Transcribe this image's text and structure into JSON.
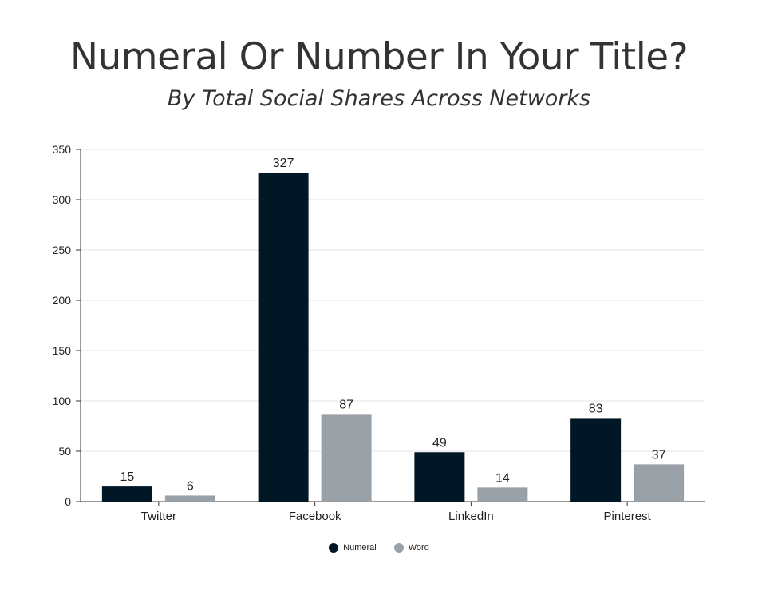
{
  "chart_data": {
    "type": "bar",
    "title": "Numeral Or Number In Your Title?",
    "subtitle": "By Total Social Shares Across Networks",
    "categories": [
      "Twitter",
      "Facebook",
      "LinkedIn",
      "Pinterest"
    ],
    "series": [
      {
        "name": "Numeral",
        "values": [
          15,
          327,
          49,
          83
        ],
        "color": "#021726"
      },
      {
        "name": "Word",
        "values": [
          6,
          87,
          14,
          37
        ],
        "color": "#99A0A6"
      }
    ],
    "ylim": [
      0,
      350
    ],
    "yticks": [
      "0",
      "50",
      "100",
      "150",
      "200",
      "250",
      "300",
      "350"
    ],
    "grid": true,
    "legend": "bottom-center"
  }
}
